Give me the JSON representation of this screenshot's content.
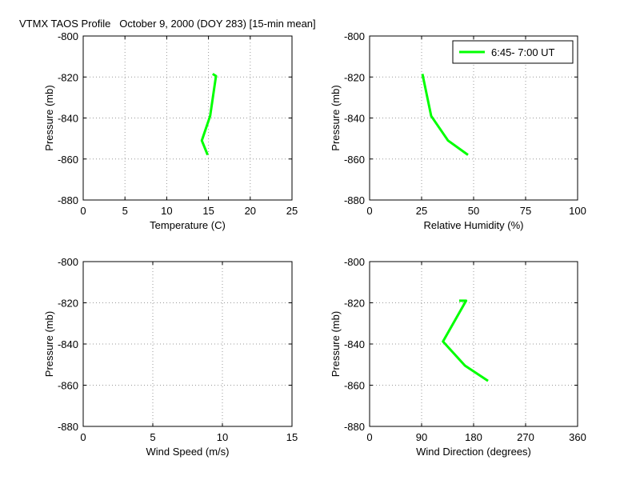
{
  "title": "VTMX TAOS Profile   October 9, 2000 (DOY 283) [15-min mean]",
  "chart_data": [
    {
      "type": "line",
      "xlabel": "Temperature (C)",
      "ylabel": "Pressure (mb)",
      "xlim": [
        0,
        25
      ],
      "xticks": [
        0,
        5,
        10,
        15,
        20,
        25
      ],
      "ylim": [
        -880,
        -800
      ],
      "yticks": [
        -800,
        -820,
        -840,
        -860,
        -880
      ],
      "grid": true,
      "series": [
        {
          "color": "#00ff00",
          "x": [
            15.5,
            15.9,
            15.2,
            14.2,
            14.9
          ],
          "values": [
            -818.5,
            -819.5,
            -839,
            -851,
            -858
          ]
        }
      ]
    },
    {
      "type": "line",
      "xlabel": "Relative Humidity (%)",
      "ylabel": "Pressure (mb)",
      "xlim": [
        0,
        100
      ],
      "xticks": [
        0,
        25,
        50,
        75,
        100
      ],
      "ylim": [
        -880,
        -800
      ],
      "yticks": [
        -800,
        -820,
        -840,
        -860,
        -880
      ],
      "grid": true,
      "legend": "upper right",
      "series": [
        {
          "name": "6:45- 7:00 UT",
          "color": "#00ff00",
          "x": [
            25.4,
            29.6,
            37.7,
            47.3
          ],
          "values": [
            -818.5,
            -839,
            -851,
            -858
          ]
        }
      ]
    },
    {
      "type": "line",
      "xlabel": "Wind Speed (m/s)",
      "ylabel": "Pressure (mb)",
      "xlim": [
        0,
        15
      ],
      "xticks": [
        0,
        5,
        10,
        15
      ],
      "ylim": [
        -880,
        -800
      ],
      "yticks": [
        -800,
        -820,
        -840,
        -860,
        -880
      ],
      "grid": true,
      "series": []
    },
    {
      "type": "line",
      "xlabel": "Wind Direction (degrees)",
      "ylabel": "Pressure (mb)",
      "xlim": [
        0,
        360
      ],
      "xticks": [
        0,
        90,
        180,
        270,
        360
      ],
      "ylim": [
        -880,
        -800
      ],
      "yticks": [
        -800,
        -820,
        -840,
        -860,
        -880
      ],
      "grid": true,
      "series": [
        {
          "color": "#00ff00",
          "x": [
            155,
            167,
            127,
            165,
            205
          ],
          "values": [
            -819,
            -819,
            -838.8,
            -850.5,
            -857.9
          ]
        }
      ]
    }
  ]
}
